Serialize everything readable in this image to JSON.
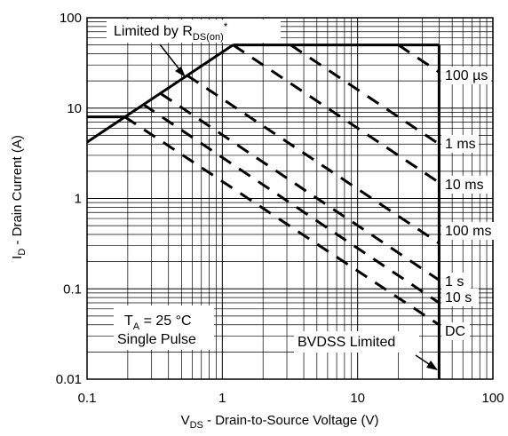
{
  "chart_data": {
    "type": "line",
    "title": "",
    "xscale": "log",
    "yscale": "log",
    "xlim": [
      0.1,
      100
    ],
    "ylim": [
      0.01,
      100
    ],
    "xticks": [
      "0.1",
      "1",
      "10",
      "100"
    ],
    "yticks": [
      "0.01",
      "0.1",
      "1",
      "10",
      "100"
    ],
    "grid": true,
    "xlabel": {
      "main": "V",
      "sub": "DS",
      "rest": " - Drain-to-Source Voltage (V)"
    },
    "ylabel": {
      "main": "I",
      "sub": "D",
      "rest": " - Drain Current (A)"
    },
    "boundary": {
      "rdson_limit": {
        "x": [
          0.1,
          1.2
        ],
        "y": [
          4.2,
          50
        ]
      },
      "current_limit": {
        "x": [
          1.2,
          40
        ],
        "y": [
          50,
          50
        ]
      },
      "bvdss_limit": {
        "x": [
          40,
          40
        ],
        "y": [
          50,
          0.01
        ]
      }
    },
    "series": [
      {
        "name": "100 µs",
        "x": [
          20,
          40
        ],
        "y": [
          50,
          25
        ]
      },
      {
        "name": "1 ms",
        "x": [
          3.2,
          40
        ],
        "y": [
          50,
          4
        ]
      },
      {
        "name": "10 ms",
        "x": [
          1.2,
          40
        ],
        "y": [
          50,
          1.5
        ]
      },
      {
        "name": "100 ms",
        "x": [
          0.55,
          40
        ],
        "y": [
          23,
          0.32
        ]
      },
      {
        "name": "1 s",
        "x": [
          0.35,
          40
        ],
        "y": [
          14.5,
          0.125
        ]
      },
      {
        "name": "10 s",
        "x": [
          0.26,
          40
        ],
        "y": [
          11,
          0.07
        ]
      },
      {
        "name": "DC",
        "x": [
          0.19,
          40
        ],
        "y": [
          8,
          0.04
        ]
      }
    ],
    "dc_flat": {
      "x": [
        0.1,
        0.19
      ],
      "y": [
        8,
        8
      ]
    },
    "annotations": {
      "limited_by_main": "Limited by R",
      "limited_by_sub": "DS(on)",
      "limited_by_star": "*",
      "ta_main": "T",
      "ta_sub": "A",
      "ta_rest": " = 25 °C",
      "single_pulse": "Single Pulse",
      "bvdss": "BVDSS Limited"
    },
    "colors": {
      "line": "#000000",
      "grid": "#000000",
      "background": "#ffffff"
    }
  }
}
